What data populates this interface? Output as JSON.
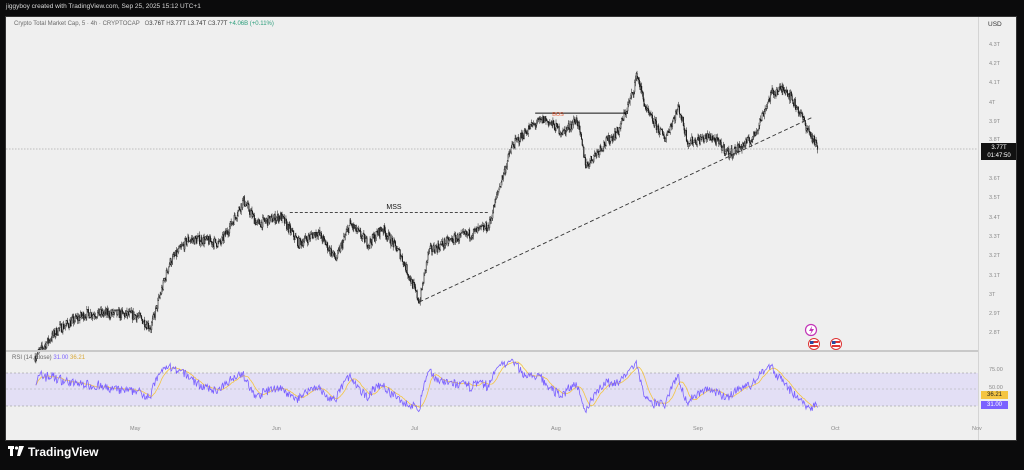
{
  "credit": "jiggyboy created with TradingView.com, Sep 25, 2025 15:12 UTC+1",
  "symbol": {
    "name": "Crypto Total Market Cap, 5 · 4h · CRYPTOCAP",
    "o_label": "O",
    "o": "3.76T",
    "h_label": "H",
    "h": "3.77T",
    "l_label": "L",
    "l": "3.74T",
    "c_label": "C",
    "c": "3.77T",
    "change": "+4.06B (+0.11%)"
  },
  "currency": "USD",
  "price_ticks": [
    "4.3T",
    "4.2T",
    "4.1T",
    "4T",
    "3.9T",
    "3.8T",
    "3.6T",
    "3.5T",
    "3.4T",
    "3.3T",
    "3.2T",
    "3.1T",
    "3T",
    "2.9T",
    "2.8T"
  ],
  "price_tag": {
    "value": "3.77T",
    "countdown": "01:47:50"
  },
  "annotations": {
    "mss": "MSS",
    "bos": "BOS"
  },
  "rsi": {
    "label": "RSI (14, close)",
    "value": "31.00",
    "ma": "36.21",
    "ticks": [
      "75.00",
      "50.00"
    ],
    "tag_ma": "36.21",
    "tag_rsi": "31.00"
  },
  "months": [
    "May",
    "Jun",
    "Jul",
    "Aug",
    "Sep",
    "Oct",
    "Nov"
  ],
  "brand": "TradingView",
  "colors": {
    "background": "#efefef",
    "frame": "#0b0b0c",
    "candle": "#111111",
    "rsi_line": "#7b61ff",
    "rsi_ma": "#f4c542",
    "bos": "#e8552d"
  },
  "chart_data": {
    "type": "candlestick",
    "symbol": "CRYPTOCAP:TOTAL",
    "interval": "4h",
    "ylim": [
      2.75,
      4.33
    ],
    "ytick_unit": "T",
    "months": [
      "May",
      "Jun",
      "Jul",
      "Aug",
      "Sep",
      "Oct",
      "Nov"
    ],
    "close_path": [
      {
        "date": "2025-04-09",
        "value": 2.7
      },
      {
        "date": "2025-04-14",
        "value": 2.84
      },
      {
        "date": "2025-04-20",
        "value": 2.92
      },
      {
        "date": "2025-04-26",
        "value": 2.92
      },
      {
        "date": "2025-05-01",
        "value": 2.91
      },
      {
        "date": "2025-05-04",
        "value": 2.85
      },
      {
        "date": "2025-05-08",
        "value": 3.18
      },
      {
        "date": "2025-05-12",
        "value": 3.3
      },
      {
        "date": "2025-05-15",
        "value": 3.3
      },
      {
        "date": "2025-05-19",
        "value": 3.28
      },
      {
        "date": "2025-05-22",
        "value": 3.41
      },
      {
        "date": "2025-05-24",
        "value": 3.5
      },
      {
        "date": "2025-05-27",
        "value": 3.38
      },
      {
        "date": "2025-06-01",
        "value": 3.42
      },
      {
        "date": "2025-06-05",
        "value": 3.28
      },
      {
        "date": "2025-06-09",
        "value": 3.34
      },
      {
        "date": "2025-06-13",
        "value": 3.2
      },
      {
        "date": "2025-06-16",
        "value": 3.38
      },
      {
        "date": "2025-06-20",
        "value": 3.28
      },
      {
        "date": "2025-06-23",
        "value": 3.36
      },
      {
        "date": "2025-06-27",
        "value": 3.22
      },
      {
        "date": "2025-06-29",
        "value": 3.1
      },
      {
        "date": "2025-07-01",
        "value": 2.98
      },
      {
        "date": "2025-07-03",
        "value": 3.24
      },
      {
        "date": "2025-07-08",
        "value": 3.3
      },
      {
        "date": "2025-07-12",
        "value": 3.33
      },
      {
        "date": "2025-07-16",
        "value": 3.37
      },
      {
        "date": "2025-07-18",
        "value": 3.55
      },
      {
        "date": "2025-07-21",
        "value": 3.78
      },
      {
        "date": "2025-07-25",
        "value": 3.88
      },
      {
        "date": "2025-07-28",
        "value": 3.92
      },
      {
        "date": "2025-08-01",
        "value": 3.85
      },
      {
        "date": "2025-08-04",
        "value": 3.92
      },
      {
        "date": "2025-08-06",
        "value": 3.68
      },
      {
        "date": "2025-08-09",
        "value": 3.77
      },
      {
        "date": "2025-08-13",
        "value": 3.86
      },
      {
        "date": "2025-08-16",
        "value": 4.05
      },
      {
        "date": "2025-08-17",
        "value": 4.15
      },
      {
        "date": "2025-08-19",
        "value": 3.96
      },
      {
        "date": "2025-08-23",
        "value": 3.82
      },
      {
        "date": "2025-08-26",
        "value": 3.98
      },
      {
        "date": "2025-08-28",
        "value": 3.8
      },
      {
        "date": "2025-09-02",
        "value": 3.83
      },
      {
        "date": "2025-09-06",
        "value": 3.74
      },
      {
        "date": "2025-09-11",
        "value": 3.82
      },
      {
        "date": "2025-09-15",
        "value": 4.05
      },
      {
        "date": "2025-09-18",
        "value": 4.08
      },
      {
        "date": "2025-09-21",
        "value": 3.96
      },
      {
        "date": "2025-09-23",
        "value": 3.86
      },
      {
        "date": "2025-09-25",
        "value": 3.77
      }
    ],
    "drawings": [
      {
        "type": "dashed-level",
        "label": "MSS",
        "y": 3.44,
        "from": "2025-06-03",
        "to": "2025-07-16"
      },
      {
        "type": "level",
        "label": "BOS",
        "y": 3.95,
        "from": "2025-07-26",
        "to": "2025-08-15"
      },
      {
        "type": "trendline",
        "from": {
          "date": "2025-07-01",
          "value": 2.98
        },
        "to": {
          "date": "2025-09-24",
          "value": 3.93
        }
      }
    ],
    "rsi": {
      "length": 14,
      "source": "close",
      "last": 31.0,
      "ma_last": 36.21,
      "levels": [
        70,
        50,
        30
      ]
    }
  }
}
